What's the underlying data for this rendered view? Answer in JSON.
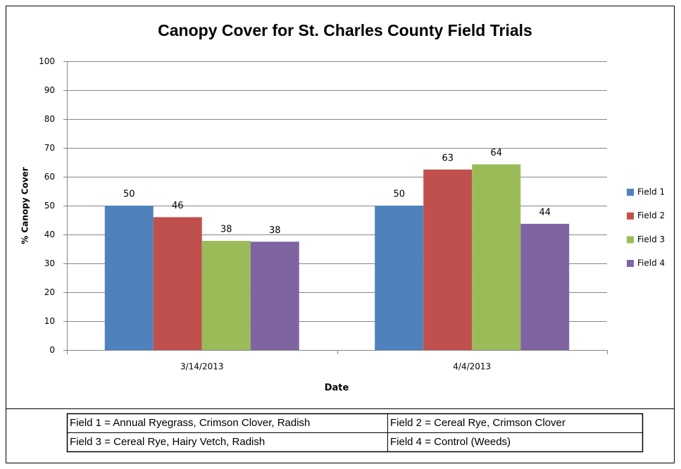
{
  "chart_data": {
    "type": "bar",
    "title": "Canopy Cover for St. Charles County Field Trials",
    "x_label": "Date",
    "y_label": "% Canopy Cover",
    "categories": [
      "3/14/2013",
      "4/4/2013"
    ],
    "series": [
      {
        "name": "Field 1",
        "color": "#4f81bd",
        "values": [
          50,
          50
        ],
        "value_labels": [
          "50",
          "50"
        ]
      },
      {
        "name": "Field 2",
        "color": "#c0504d",
        "values": [
          46,
          62.5
        ],
        "value_labels": [
          "46",
          "63"
        ]
      },
      {
        "name": "Field 3",
        "color": "#9bbb59",
        "values": [
          37.8,
          64.3
        ],
        "value_labels": [
          "38",
          "64"
        ]
      },
      {
        "name": "Field 4",
        "color": "#8064a2",
        "values": [
          37.5,
          43.7
        ],
        "value_labels": [
          "38",
          "44"
        ]
      }
    ],
    "ylim": [
      0,
      100
    ],
    "yticks": [
      0,
      10,
      20,
      30,
      40,
      50,
      60,
      70,
      80,
      90,
      100
    ],
    "grid": true,
    "legend": "right"
  },
  "table": {
    "rows": [
      [
        "Field 1 = Annual Ryegrass, Crimson Clover, Radish",
        "Field 2 = Cereal Rye, Crimson Clover"
      ],
      [
        "Field 3 = Cereal Rye, Hairy Vetch, Radish",
        "Field 4 = Control (Weeds)"
      ]
    ]
  }
}
